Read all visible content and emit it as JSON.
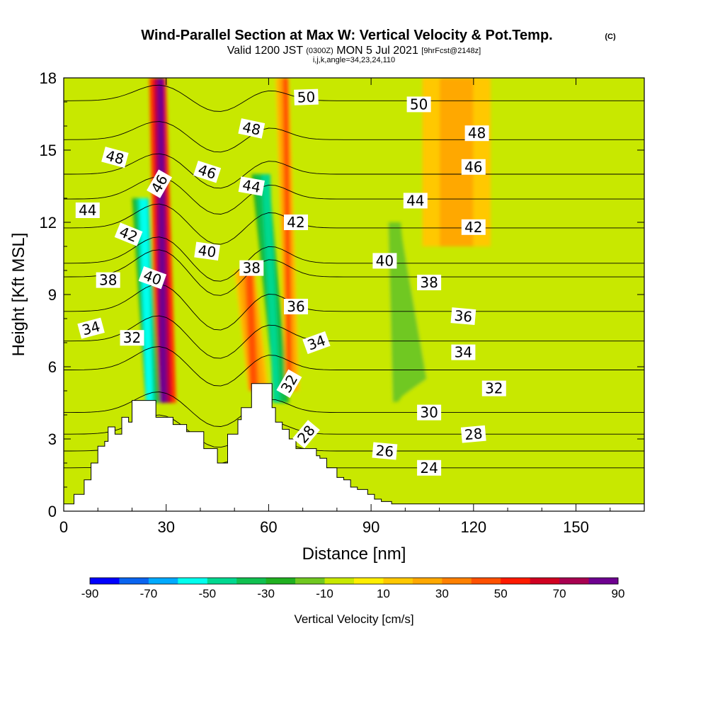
{
  "chart_data": {
    "type": "heatmap",
    "title": "Wind-Parallel Section at Max W: Vertical Velocity & Pot.Temp.",
    "title_mark": "(C)",
    "subtitle_prefix": "Valid 1200 JST",
    "subtitle_utc": "(0300Z)",
    "subtitle_date": "MON 5 Jul 2021",
    "subtitle_fcst": "[9hrFcst@2148z]",
    "grid_info": "i,j,k,angle=34,23,24,110",
    "xlabel": "Distance [nm]",
    "ylabel": "Height [Kft MSL]",
    "xlim": [
      0,
      170
    ],
    "ylim": [
      0,
      18
    ],
    "xticks": [
      0,
      30,
      60,
      90,
      120,
      150
    ],
    "yticks": [
      0,
      3,
      6,
      9,
      12,
      15,
      18
    ],
    "colorbar": {
      "label": "Vertical Velocity [cm/s]",
      "tick_values": [
        -90,
        -70,
        -50,
        -30,
        -10,
        10,
        30,
        50,
        70,
        90
      ],
      "levels": [
        -90,
        -80,
        -70,
        -60,
        -50,
        -40,
        -30,
        -20,
        -10,
        0,
        10,
        20,
        30,
        40,
        50,
        60,
        70,
        80,
        90
      ],
      "colors": [
        "#0000ff",
        "#0a64f0",
        "#00aaff",
        "#00ffee",
        "#00d890",
        "#10c050",
        "#20b020",
        "#70c820",
        "#c8e800",
        "#ffee00",
        "#ffc800",
        "#ffa800",
        "#ff8000",
        "#ff5000",
        "#ff1a00",
        "#d00020",
        "#a80050",
        "#6e0090"
      ]
    },
    "vertical_velocity_features": [
      {
        "x": [
          25,
          30,
          33,
          27
        ],
        "y": [
          18,
          18,
          4.5,
          4.5
        ],
        "peak_cm_s": 90
      },
      {
        "x": [
          20,
          25,
          28,
          24
        ],
        "y": [
          13,
          13,
          4.5,
          4.5
        ],
        "peak_cm_s": -60
      },
      {
        "x": [
          55,
          60,
          66,
          62
        ],
        "y": [
          14,
          14,
          4.5,
          4.5
        ],
        "peak_cm_s": -50
      },
      {
        "x": [
          50,
          56,
          60,
          54
        ],
        "y": [
          10,
          10,
          5,
          5
        ],
        "peak_cm_s": 40
      },
      {
        "x": [
          62,
          66,
          69,
          65
        ],
        "y": [
          18,
          18,
          5,
          5
        ],
        "peak_cm_s": 40
      },
      {
        "x": [
          93,
          98,
          110,
          95
        ],
        "y": [
          12,
          12,
          5.5,
          4.5
        ],
        "peak_cm_s": -15
      },
      {
        "x": [
          105,
          125,
          125,
          105
        ],
        "y": [
          18,
          18,
          11,
          11
        ],
        "peak_cm_s": 25
      }
    ],
    "terrain_kft": {
      "x": [
        0,
        3,
        3,
        6,
        6,
        8,
        8,
        10,
        10,
        12,
        12,
        13,
        13,
        15,
        15,
        17,
        17,
        19,
        19,
        20,
        20,
        27,
        27,
        29,
        29,
        32,
        32,
        34,
        34,
        36,
        36,
        41,
        41,
        43,
        43,
        45,
        45,
        48,
        48,
        51,
        51,
        52,
        52,
        55,
        55,
        61,
        61,
        62,
        62,
        64,
        64,
        66,
        66,
        68,
        68,
        71,
        71,
        74,
        74,
        75,
        75,
        77,
        77,
        79,
        79,
        80,
        80,
        82,
        82,
        84,
        84,
        86,
        86,
        89,
        89,
        91,
        91,
        93,
        93,
        96,
        96,
        98,
        98,
        170
      ],
      "y": [
        0.3,
        0.3,
        0.7,
        0.7,
        1.3,
        1.3,
        2.0,
        2.0,
        2.7,
        2.7,
        2.9,
        2.9,
        3.5,
        3.5,
        3.2,
        3.2,
        3.9,
        3.9,
        3.7,
        3.7,
        4.6,
        4.6,
        3.9,
        3.9,
        3.9,
        3.9,
        3.6,
        3.6,
        3.6,
        3.6,
        3.3,
        3.3,
        2.6,
        2.6,
        2.6,
        2.6,
        2.0,
        2.0,
        3.2,
        3.2,
        3.8,
        3.8,
        4.3,
        4.3,
        5.3,
        5.3,
        4.3,
        4.3,
        3.7,
        3.7,
        3.4,
        3.4,
        3.0,
        3.0,
        2.6,
        2.6,
        2.6,
        2.6,
        2.3,
        2.3,
        2.2,
        2.2,
        1.8,
        1.8,
        1.8,
        1.8,
        1.4,
        1.4,
        1.3,
        1.3,
        1.0,
        1.0,
        0.9,
        0.9,
        0.7,
        0.7,
        0.5,
        0.5,
        0.4,
        0.4,
        0.3,
        0.3,
        0.3,
        0.3
      ]
    },
    "potential_temperature_labels": [
      {
        "text": "50",
        "x": 71,
        "y": 17.2,
        "angle": -2
      },
      {
        "text": "50",
        "x": 104,
        "y": 16.9,
        "angle": 0
      },
      {
        "text": "48",
        "x": 55,
        "y": 15.9,
        "angle": 12
      },
      {
        "text": "48",
        "x": 121,
        "y": 15.7,
        "angle": 0
      },
      {
        "text": "48",
        "x": 15,
        "y": 14.7,
        "angle": 15
      },
      {
        "text": "46",
        "x": 42,
        "y": 14.1,
        "angle": 18
      },
      {
        "text": "46",
        "x": 120,
        "y": 14.3,
        "angle": 0
      },
      {
        "text": "46",
        "x": 28,
        "y": 13.6,
        "angle": -60
      },
      {
        "text": "44",
        "x": 55,
        "y": 13.5,
        "angle": 10
      },
      {
        "text": "44",
        "x": 103,
        "y": 12.9,
        "angle": 0
      },
      {
        "text": "44",
        "x": 7,
        "y": 12.5,
        "angle": 0
      },
      {
        "text": "42",
        "x": 68,
        "y": 12.0,
        "angle": 0
      },
      {
        "text": "42",
        "x": 120,
        "y": 11.8,
        "angle": 0
      },
      {
        "text": "42",
        "x": 19,
        "y": 11.5,
        "angle": 22
      },
      {
        "text": "40",
        "x": 42,
        "y": 10.8,
        "angle": 8
      },
      {
        "text": "40",
        "x": 94,
        "y": 10.4,
        "angle": 0
      },
      {
        "text": "40",
        "x": 26,
        "y": 9.7,
        "angle": 20
      },
      {
        "text": "38",
        "x": 55,
        "y": 10.1,
        "angle": 0
      },
      {
        "text": "38",
        "x": 13,
        "y": 9.6,
        "angle": 0
      },
      {
        "text": "38",
        "x": 107,
        "y": 9.5,
        "angle": 0
      },
      {
        "text": "36",
        "x": 68,
        "y": 8.5,
        "angle": 0
      },
      {
        "text": "36",
        "x": 117,
        "y": 8.1,
        "angle": 5
      },
      {
        "text": "34",
        "x": 8,
        "y": 7.6,
        "angle": -15
      },
      {
        "text": "34",
        "x": 74,
        "y": 7.0,
        "angle": -20
      },
      {
        "text": "34",
        "x": 117,
        "y": 6.6,
        "angle": 0
      },
      {
        "text": "32",
        "x": 20,
        "y": 7.2,
        "angle": 0
      },
      {
        "text": "32",
        "x": 66,
        "y": 5.3,
        "angle": -60
      },
      {
        "text": "32",
        "x": 126,
        "y": 5.1,
        "angle": 0
      },
      {
        "text": "30",
        "x": 107,
        "y": 4.1,
        "angle": 0
      },
      {
        "text": "28",
        "x": 71,
        "y": 3.2,
        "angle": -50
      },
      {
        "text": "28",
        "x": 120,
        "y": 3.2,
        "angle": -5
      },
      {
        "text": "26",
        "x": 94,
        "y": 2.5,
        "angle": 5
      },
      {
        "text": "24",
        "x": 107,
        "y": 1.8,
        "angle": 0
      }
    ]
  }
}
